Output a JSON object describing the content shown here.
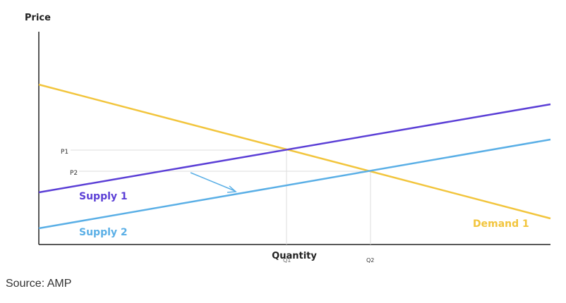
{
  "diagram": {
    "y_axis_label": "Price",
    "x_axis_label": "Quantity",
    "price_levels": [
      "P1",
      "P2"
    ],
    "quantity_levels": [
      "Q1",
      "Q2"
    ],
    "curves": [
      "Supply 1",
      "Supply 2",
      "Demand 1"
    ]
  },
  "source": "Source: AMP"
}
